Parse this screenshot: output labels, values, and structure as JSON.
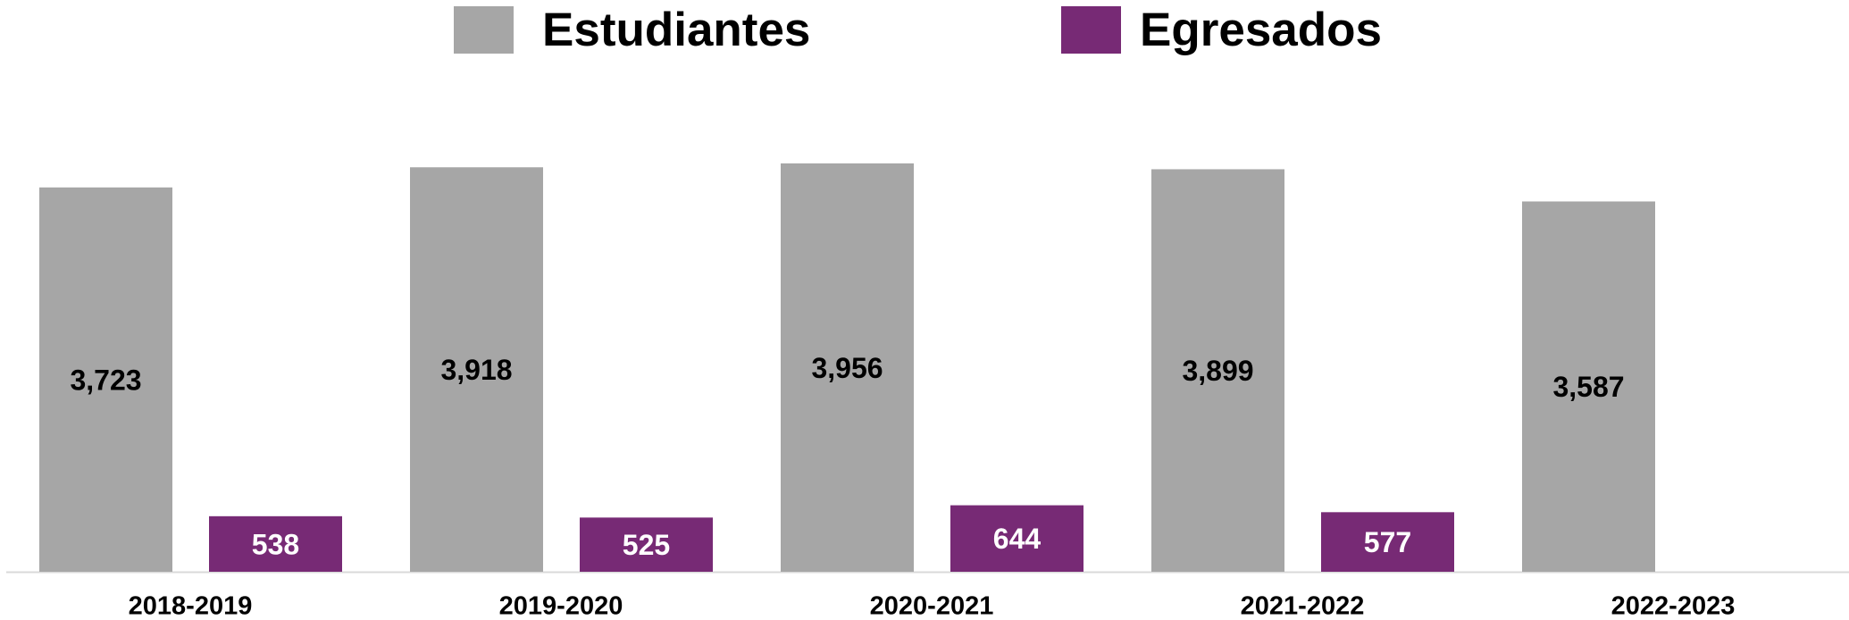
{
  "chart_data": {
    "type": "bar",
    "categories": [
      "2018-2019",
      "2019-2020",
      "2020-2021",
      "2021-2022",
      "2022-2023"
    ],
    "series": [
      {
        "name": "Estudiantes",
        "color": "#a6a6a6",
        "values": [
          3723,
          3918,
          3956,
          3899,
          3587
        ],
        "value_labels": [
          "3,723",
          "3,918",
          "3,956",
          "3,899",
          "3,587"
        ]
      },
      {
        "name": "Egresados",
        "color": "#772a75",
        "values": [
          538,
          525,
          644,
          577,
          null
        ],
        "value_labels": [
          "538",
          "525",
          "644",
          "577",
          null
        ]
      }
    ],
    "ylim": [
      0,
      4500
    ]
  }
}
